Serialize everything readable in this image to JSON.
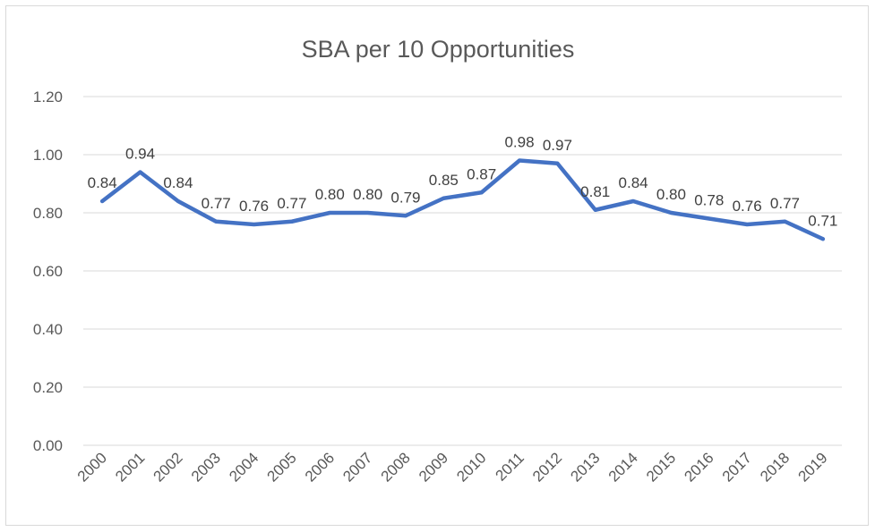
{
  "chart_data": {
    "type": "line",
    "title": "SBA per 10 Opportunities",
    "xlabel": "",
    "ylabel": "",
    "categories": [
      "2000",
      "2001",
      "2002",
      "2003",
      "2004",
      "2005",
      "2006",
      "2007",
      "2008",
      "2009",
      "2010",
      "2011",
      "2012",
      "2013",
      "2014",
      "2015",
      "2016",
      "2017",
      "2018",
      "2019"
    ],
    "series": [
      {
        "values": [
          0.84,
          0.94,
          0.84,
          0.77,
          0.76,
          0.77,
          0.8,
          0.8,
          0.79,
          0.85,
          0.87,
          0.98,
          0.97,
          0.81,
          0.84,
          0.8,
          0.78,
          0.76,
          0.77,
          0.71
        ],
        "data_labels": [
          "0.84",
          "0.94",
          "0.84",
          "0.77",
          "0.76",
          "0.77",
          "0.80",
          "0.80",
          "0.79",
          "0.85",
          "0.87",
          "0.98",
          "0.97",
          "0.81",
          "0.84",
          "0.80",
          "0.78",
          "0.76",
          "0.77",
          "0.71"
        ],
        "color": "#4472c4"
      }
    ],
    "ylim": [
      0,
      1.2
    ],
    "yticks": [
      "0.00",
      "0.20",
      "0.40",
      "0.60",
      "0.80",
      "1.00",
      "1.20"
    ],
    "ytick_values": [
      0,
      0.2,
      0.4,
      0.6,
      0.8,
      1.0,
      1.2
    ],
    "grid": true,
    "legend": "none"
  }
}
